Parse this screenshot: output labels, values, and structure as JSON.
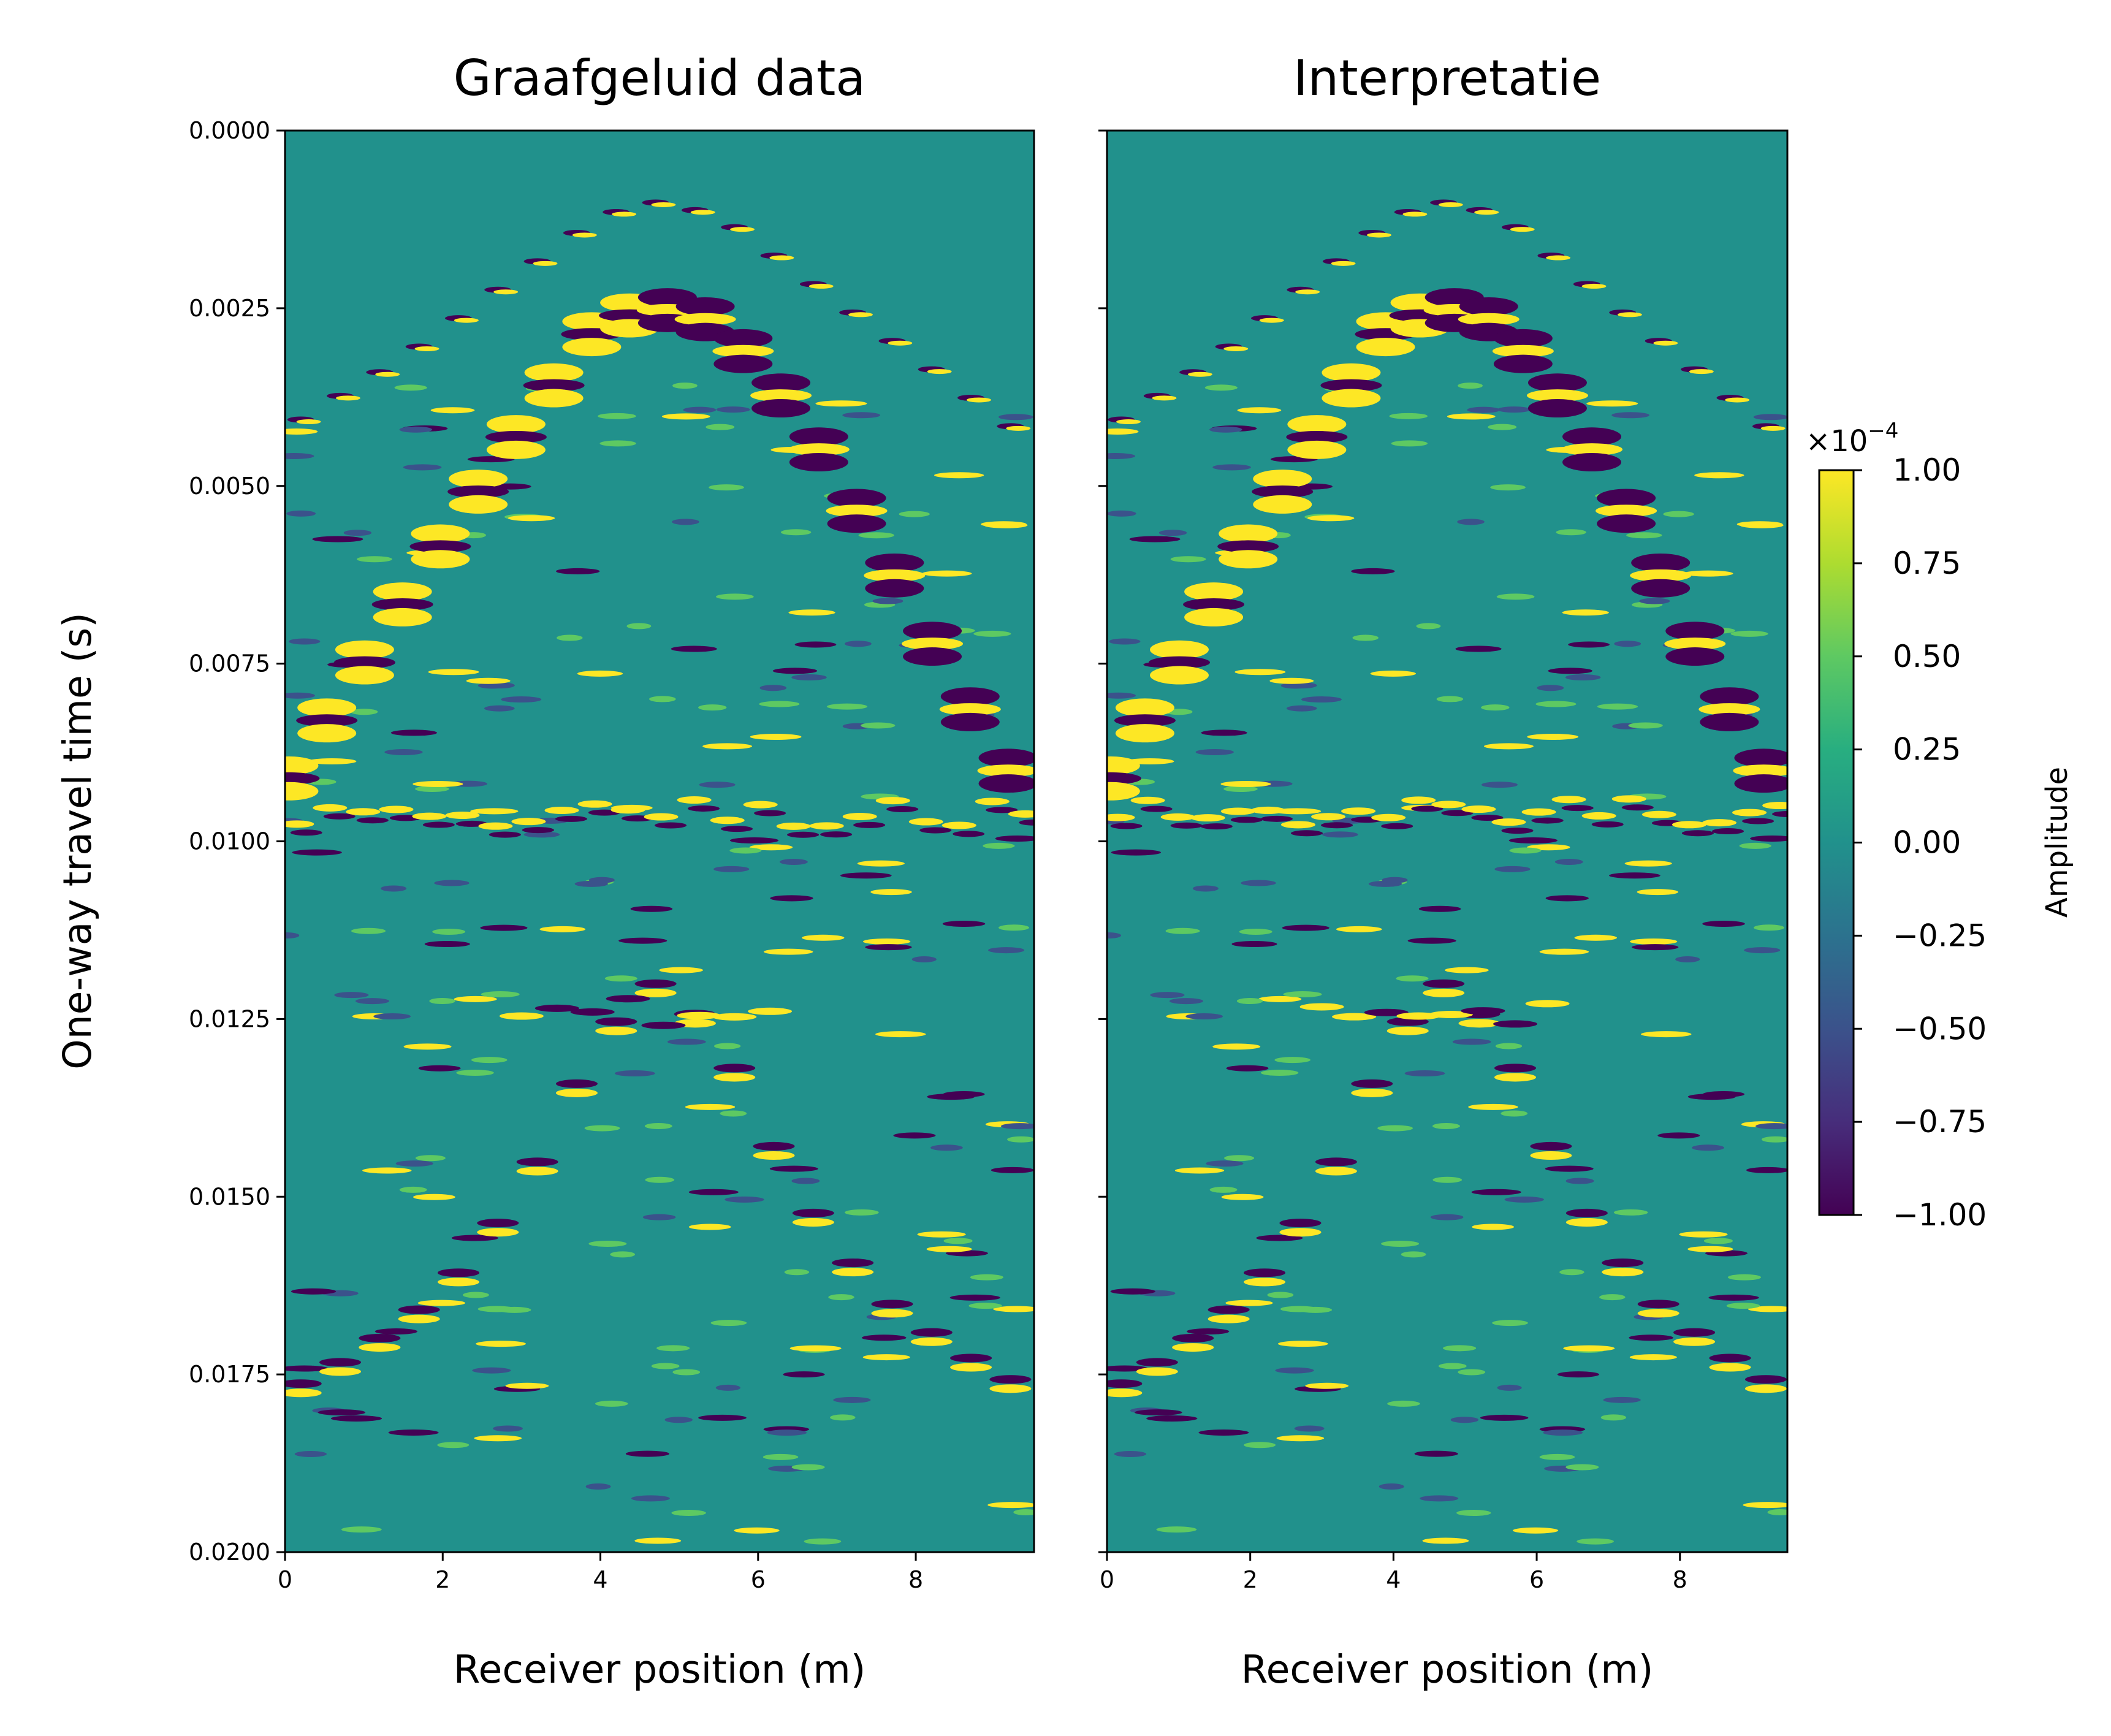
{
  "chart_data": [
    {
      "type": "heatmap",
      "title": "Graafgeluid data",
      "xlabel": "Receiver position (m)",
      "ylabel": "One-way travel time (s)",
      "xlim": [
        0,
        9.5
      ],
      "ylim": [
        0.02,
        0.0
      ],
      "x_ticks": [
        "0",
        "2",
        "4",
        "6",
        "8"
      ],
      "y_ticks": [
        "0.0000",
        "0.0025",
        "0.0050",
        "0.0075",
        "0.0100",
        "0.0125",
        "0.0150",
        "0.0175",
        "0.0200"
      ],
      "colormap": "viridis",
      "vmin": -0.0001,
      "vmax": 0.0001,
      "direct_wave": [
        [
          0.0,
          0.0092
        ],
        [
          1.0,
          0.0075
        ],
        [
          2.0,
          0.0058
        ],
        [
          3.0,
          0.0042
        ],
        [
          4.0,
          0.0027
        ],
        [
          4.75,
          0.0025
        ],
        [
          5.5,
          0.0027
        ],
        [
          6.5,
          0.004
        ],
        [
          7.5,
          0.0058
        ],
        [
          8.5,
          0.0078
        ],
        [
          9.5,
          0.0096
        ]
      ],
      "shallow_hyperbola": [
        [
          0.0,
          0.0042
        ],
        [
          1.5,
          0.0032
        ],
        [
          3.0,
          0.002
        ],
        [
          4.0,
          0.0012
        ],
        [
          4.75,
          0.001
        ],
        [
          5.5,
          0.0012
        ],
        [
          6.5,
          0.002
        ],
        [
          8.0,
          0.0032
        ],
        [
          9.5,
          0.0044
        ]
      ],
      "deep_hyperbola": [
        [
          0.0,
          0.0178
        ],
        [
          1.0,
          0.0172
        ],
        [
          2.0,
          0.0164
        ],
        [
          3.0,
          0.015
        ],
        [
          4.0,
          0.0128
        ],
        [
          4.75,
          0.012
        ],
        [
          5.5,
          0.0128
        ],
        [
          6.5,
          0.015
        ],
        [
          7.5,
          0.0164
        ],
        [
          8.5,
          0.0172
        ],
        [
          9.5,
          0.0178
        ]
      ],
      "reflector_band": [
        0.0096,
        0.0098
      ]
    },
    {
      "type": "heatmap",
      "title": "Interpretatie",
      "xlabel": "Receiver position (m)",
      "ylabel": "",
      "xlim": [
        0,
        9.5
      ],
      "ylim": [
        0.02,
        0.0
      ],
      "x_ticks": [
        "0",
        "2",
        "4",
        "6",
        "8"
      ],
      "colormap": "viridis",
      "vmin": -0.0001,
      "vmax": 0.0001
    }
  ],
  "colorbar": {
    "label": "Amplitude",
    "multiplier": "×10",
    "exponent": "−4",
    "ticks": [
      "1.00",
      "0.75",
      "0.50",
      "0.25",
      "0.00",
      "−0.25",
      "−0.50",
      "−0.75",
      "−1.00"
    ],
    "tick_values": [
      1.0,
      0.75,
      0.5,
      0.25,
      0.0,
      -0.25,
      -0.5,
      -0.75,
      -1.0
    ]
  },
  "colors": {
    "background": "#21918c",
    "positive": "#fde725",
    "negative": "#440154",
    "light_positive": "#5ec962",
    "light_negative": "#3b528b"
  }
}
